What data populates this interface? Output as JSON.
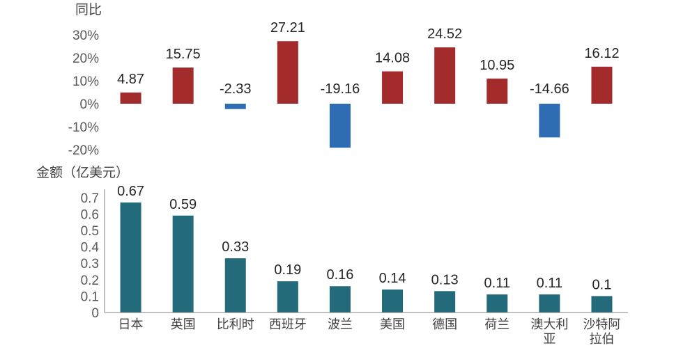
{
  "chart_data": [
    {
      "type": "bar",
      "ylabel": "同比",
      "categories": [
        "日本",
        "英国",
        "比利时",
        "西班牙",
        "波兰",
        "美国",
        "德国",
        "荷兰",
        "澳大利亚",
        "沙特阿拉伯"
      ],
      "values": [
        4.87,
        15.75,
        -2.33,
        27.21,
        -19.16,
        14.08,
        24.52,
        10.95,
        -14.66,
        16.12
      ],
      "value_labels": [
        "4.87",
        "15.75",
        "-2.33",
        "27.21",
        "-19.16",
        "14.08",
        "24.52",
        "10.95",
        "-14.66",
        "16.12"
      ],
      "ylim": [
        -20,
        30
      ],
      "yticks": [
        30,
        20,
        10,
        0,
        -10,
        -20
      ],
      "ytick_labels": [
        "30%",
        "20%",
        "10%",
        "0%",
        "-10%",
        "-20%"
      ],
      "grid": false,
      "colors": {
        "positive": "#A32B2B",
        "negative": "#2E6DB4"
      }
    },
    {
      "type": "bar",
      "ylabel": "金额（亿美元）",
      "categories": [
        "日本",
        "英国",
        "比利时",
        "西班牙",
        "波兰",
        "美国",
        "德国",
        "荷兰",
        "澳大利亚",
        "沙特阿拉伯"
      ],
      "category_labels": [
        [
          "日本"
        ],
        [
          "英国"
        ],
        [
          "比利时"
        ],
        [
          "西班牙"
        ],
        [
          "波兰"
        ],
        [
          "美国"
        ],
        [
          "德国"
        ],
        [
          "荷兰"
        ],
        [
          "澳大利",
          "亚"
        ],
        [
          "沙特阿",
          "拉伯"
        ]
      ],
      "values": [
        0.67,
        0.59,
        0.33,
        0.19,
        0.16,
        0.14,
        0.13,
        0.11,
        0.11,
        0.1
      ],
      "value_labels": [
        "0.67",
        "0.59",
        "0.33",
        "0.19",
        "0.16",
        "0.14",
        "0.13",
        "0.11",
        "0.11",
        "0.1"
      ],
      "ylim": [
        0,
        0.7
      ],
      "yticks": [
        0.7,
        0.6,
        0.5,
        0.4,
        0.3,
        0.2,
        0.1,
        0
      ],
      "ytick_labels": [
        "0.7",
        "0.6",
        "0.5",
        "0.4",
        "0.3",
        "0.2",
        "0.1",
        "0"
      ],
      "grid": false,
      "colors": {
        "bar": "#236B7B"
      }
    }
  ]
}
